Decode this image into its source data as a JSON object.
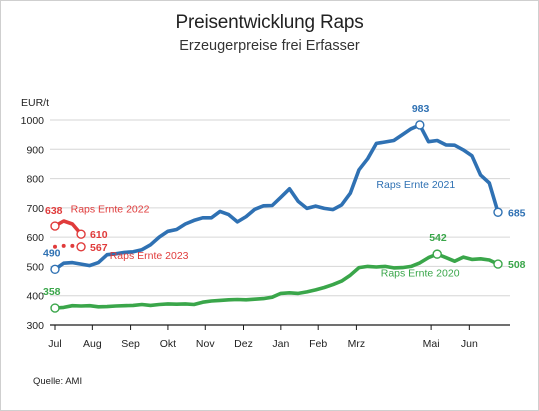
{
  "header": {
    "title": "Preisentwicklung Raps",
    "subtitle": "Erzeugerpreise frei Erfasser"
  },
  "footer": {
    "source": "Quelle: AMI"
  },
  "colors": {
    "blue": "#2f71b3",
    "green": "#3aa64a",
    "red": "#e03b3b",
    "grid": "#d6d6d6",
    "axis": "#1a1a1a"
  },
  "chart_data": {
    "type": "line",
    "title": "",
    "ylabel": "EUR/t",
    "ylim": [
      300,
      1050
    ],
    "yticks": [
      300,
      400,
      500,
      600,
      700,
      800,
      900,
      1000
    ],
    "grid": true,
    "x_categories": [
      "Jul",
      "Aug",
      "Sep",
      "Okt",
      "Nov",
      "Dez",
      "Jan",
      "Feb",
      "Mrz",
      "Mai",
      "Jun"
    ],
    "x_ticks": [
      0,
      4.3,
      8.7,
      13,
      17.3,
      21.7,
      26,
      30.3,
      34.7,
      43.3,
      47.7
    ],
    "series": [
      {
        "name": "Raps Ernte 2021",
        "color": "blue",
        "style": "solid",
        "x": [
          0,
          1,
          2,
          3,
          4,
          5,
          6,
          7,
          8,
          9,
          10,
          11,
          12,
          13,
          14,
          15,
          16,
          17,
          18,
          19,
          20,
          21,
          22,
          23,
          24,
          25,
          26,
          27,
          28,
          29,
          30,
          31,
          32,
          33,
          34,
          35,
          36,
          37,
          38,
          39,
          40,
          41,
          42,
          43,
          44,
          45,
          46,
          47,
          48,
          49,
          50,
          51
        ],
        "values": [
          490,
          511,
          513,
          508,
          503,
          513,
          540,
          543,
          548,
          550,
          557,
          574,
          600,
          620,
          626,
          645,
          657,
          666,
          666,
          688,
          677,
          652,
          670,
          695,
          707,
          708,
          736,
          765,
          722,
          698,
          706,
          698,
          694,
          710,
          750,
          830,
          868,
          920,
          925,
          930,
          950,
          970,
          983,
          926,
          930,
          915,
          914,
          898,
          878,
          812,
          785,
          685
        ]
      },
      {
        "name": "Raps Ernte 2020",
        "color": "green",
        "style": "solid",
        "x": [
          0,
          1,
          2,
          3,
          4,
          5,
          6,
          7,
          8,
          9,
          10,
          11,
          12,
          13,
          14,
          15,
          16,
          17,
          18,
          19,
          20,
          21,
          22,
          23,
          24,
          25,
          26,
          27,
          28,
          29,
          30,
          31,
          32,
          33,
          34,
          35,
          36,
          37,
          38,
          39,
          40,
          41,
          42,
          43,
          44,
          45,
          46,
          47,
          48,
          49,
          50,
          51
        ],
        "values": [
          358,
          360,
          366,
          365,
          366,
          362,
          363,
          365,
          366,
          367,
          370,
          367,
          370,
          372,
          371,
          372,
          370,
          378,
          382,
          384,
          386,
          387,
          386,
          388,
          390,
          395,
          408,
          410,
          408,
          413,
          420,
          428,
          438,
          450,
          470,
          496,
          500,
          498,
          500,
          495,
          496,
          500,
          512,
          530,
          542,
          530,
          518,
          532,
          524,
          526,
          522,
          508
        ]
      },
      {
        "name": "Raps Ernte 2022",
        "color": "red",
        "style": "solid",
        "x": [
          0,
          1,
          2,
          3
        ],
        "values": [
          638,
          655,
          645,
          610
        ]
      },
      {
        "name": "Raps Ernte 2023",
        "color": "red",
        "style": "dotted",
        "x": [
          0,
          1,
          2,
          3
        ],
        "values": [
          567,
          570,
          570,
          567
        ]
      }
    ],
    "series_labels": [
      {
        "text": "Raps Ernte 2021",
        "series": 0,
        "x": 37,
        "y": 768,
        "color": "blue"
      },
      {
        "text": "Raps Ernte 2020",
        "series": 1,
        "x": 37.5,
        "y": 465,
        "color": "green"
      },
      {
        "text": "Raps Ernte 2022",
        "series": 2,
        "x": 1.8,
        "y": 685,
        "color": "red"
      },
      {
        "text": "Raps Ernte 2023",
        "series": 3,
        "x": 6.3,
        "y": 525,
        "color": "red"
      }
    ],
    "data_labels": [
      {
        "text": "490",
        "series": 0,
        "x": 0,
        "y": 490,
        "dx": -12,
        "dy": -13,
        "anchor": "start",
        "color": "blue"
      },
      {
        "text": "983",
        "series": 0,
        "x": 42,
        "y": 983,
        "dx": -8,
        "dy": -13,
        "anchor": "start",
        "color": "blue"
      },
      {
        "text": "685",
        "series": 0,
        "x": 51,
        "y": 685,
        "dx": 10,
        "dy": 4,
        "anchor": "start",
        "color": "blue"
      },
      {
        "text": "358",
        "series": 1,
        "x": 0,
        "y": 358,
        "dx": -12,
        "dy": -13,
        "anchor": "start",
        "color": "green"
      },
      {
        "text": "542",
        "series": 1,
        "x": 44,
        "y": 542,
        "dx": -8,
        "dy": -13,
        "anchor": "start",
        "color": "green"
      },
      {
        "text": "508",
        "series": 1,
        "x": 51,
        "y": 508,
        "dx": 10,
        "dy": 4,
        "anchor": "start",
        "color": "green"
      },
      {
        "text": "638",
        "series": 2,
        "x": 0,
        "y": 638,
        "dx": -10,
        "dy": -12,
        "anchor": "start",
        "color": "red"
      },
      {
        "text": "610",
        "series": 2,
        "x": 3,
        "y": 610,
        "dx": 9,
        "dy": 4,
        "anchor": "start",
        "color": "red"
      },
      {
        "text": "567",
        "series": 3,
        "x": 3,
        "y": 567,
        "dx": 9,
        "dy": 4,
        "anchor": "start",
        "color": "red"
      }
    ],
    "markers": [
      {
        "series": 0,
        "x": 0,
        "y": 490,
        "color": "blue"
      },
      {
        "series": 0,
        "x": 42,
        "y": 983,
        "color": "blue"
      },
      {
        "series": 0,
        "x": 51,
        "y": 685,
        "color": "blue"
      },
      {
        "series": 1,
        "x": 0,
        "y": 358,
        "color": "green"
      },
      {
        "series": 1,
        "x": 44,
        "y": 542,
        "color": "green"
      },
      {
        "series": 1,
        "x": 51,
        "y": 508,
        "color": "green"
      },
      {
        "series": 2,
        "x": 0,
        "y": 638,
        "color": "red"
      },
      {
        "series": 2,
        "x": 3,
        "y": 610,
        "color": "red"
      },
      {
        "series": 3,
        "x": 3,
        "y": 567,
        "color": "red"
      }
    ]
  }
}
